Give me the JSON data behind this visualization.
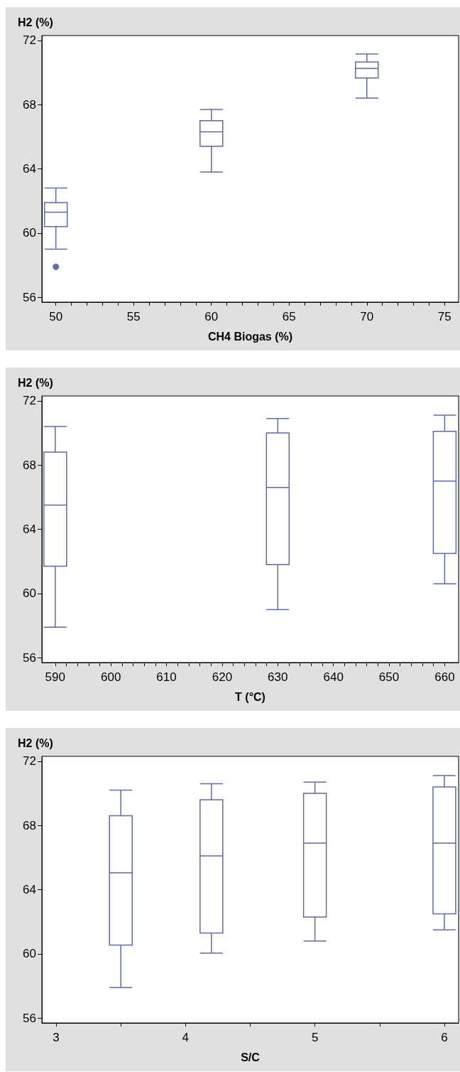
{
  "chart_data": [
    {
      "type": "box",
      "xlabel": "CH4 Biogas (%)",
      "ylabel": "H2 (%)",
      "x": [
        50,
        60,
        70
      ],
      "color": "#5b6bad",
      "grid": false,
      "ylim": [
        55.7,
        72.3
      ],
      "yticks": [
        56,
        60,
        64,
        68,
        72
      ],
      "xlim": [
        49.1,
        75.9
      ],
      "xticks": [
        50,
        {
          "value": 51,
          "label": null
        },
        {
          "value": 52,
          "label": null
        },
        {
          "value": 53,
          "label": null
        },
        {
          "value": 54,
          "label": null
        },
        55,
        {
          "value": 56,
          "label": null
        },
        {
          "value": 57,
          "label": null
        },
        {
          "value": 58,
          "label": null
        },
        {
          "value": 59,
          "label": null
        },
        60,
        {
          "value": 61,
          "label": null
        },
        {
          "value": 62,
          "label": null
        },
        {
          "value": 63,
          "label": null
        },
        {
          "value": 64,
          "label": null
        },
        65,
        {
          "value": 66,
          "label": null
        },
        {
          "value": 67,
          "label": null
        },
        {
          "value": 68,
          "label": null
        },
        {
          "value": 69,
          "label": null
        },
        70,
        {
          "value": 71,
          "label": null
        },
        {
          "value": 72,
          "label": null
        },
        {
          "value": 73,
          "label": null
        },
        {
          "value": 74,
          "label": null
        },
        75
      ],
      "boxes": [
        {
          "low": 59.0,
          "q1": 60.4,
          "median": 61.3,
          "q3": 61.9,
          "high": 62.8,
          "outliers": [
            57.9
          ]
        },
        {
          "low": 63.8,
          "q1": 65.4,
          "median": 66.3,
          "q3": 67.0,
          "high": 67.7
        },
        {
          "low": 68.4,
          "q1": 69.65,
          "median": 70.25,
          "q3": 70.65,
          "high": 71.15
        }
      ]
    },
    {
      "type": "box",
      "xlabel": "T (°C)",
      "ylabel": "H2 (%)",
      "x": [
        590,
        630,
        660
      ],
      "color": "#5b6bad",
      "grid": false,
      "ylim": [
        55.7,
        72.3
      ],
      "yticks": [
        56,
        60,
        64,
        68,
        72
      ],
      "xlim": [
        587.6,
        662.5
      ],
      "xticks": [
        590,
        {
          "value": 592,
          "label": null
        },
        {
          "value": 594,
          "label": null
        },
        {
          "value": 596,
          "label": null
        },
        {
          "value": 598,
          "label": null
        },
        600,
        {
          "value": 602,
          "label": null
        },
        {
          "value": 604,
          "label": null
        },
        {
          "value": 606,
          "label": null
        },
        {
          "value": 608,
          "label": null
        },
        610,
        {
          "value": 612,
          "label": null
        },
        {
          "value": 614,
          "label": null
        },
        {
          "value": 616,
          "label": null
        },
        {
          "value": 618,
          "label": null
        },
        620,
        {
          "value": 622,
          "label": null
        },
        {
          "value": 624,
          "label": null
        },
        {
          "value": 626,
          "label": null
        },
        {
          "value": 628,
          "label": null
        },
        630,
        {
          "value": 632,
          "label": null
        },
        {
          "value": 634,
          "label": null
        },
        {
          "value": 636,
          "label": null
        },
        {
          "value": 638,
          "label": null
        },
        640,
        {
          "value": 642,
          "label": null
        },
        {
          "value": 644,
          "label": null
        },
        {
          "value": 646,
          "label": null
        },
        {
          "value": 648,
          "label": null
        },
        650,
        {
          "value": 652,
          "label": null
        },
        {
          "value": 654,
          "label": null
        },
        {
          "value": 656,
          "label": null
        },
        {
          "value": 658,
          "label": null
        },
        660
      ],
      "boxes": [
        {
          "low": 57.9,
          "q1": 61.7,
          "median": 65.5,
          "q3": 68.8,
          "high": 70.4
        },
        {
          "low": 59.0,
          "q1": 61.8,
          "median": 66.6,
          "q3": 70.0,
          "high": 70.9
        },
        {
          "low": 60.6,
          "q1": 62.5,
          "median": 67.0,
          "q3": 70.1,
          "high": 71.1
        }
      ]
    },
    {
      "type": "box",
      "xlabel": "S/C",
      "ylabel": "H2 (%)",
      "x": [
        3.5,
        4.2,
        5,
        6
      ],
      "color": "#5b6bad",
      "grid": false,
      "ylim": [
        55.7,
        72.3
      ],
      "yticks": [
        56,
        60,
        64,
        68,
        72
      ],
      "xlim": [
        2.89,
        6.11
      ],
      "xticks": [
        3,
        {
          "value": 3.5,
          "label": null
        },
        4,
        {
          "value": 4.5,
          "label": null
        },
        5,
        {
          "value": 5.5,
          "label": null
        },
        6
      ],
      "boxes": [
        {
          "low": 57.9,
          "q1": 60.55,
          "median": 65.05,
          "q3": 68.6,
          "high": 70.2
        },
        {
          "low": 60.05,
          "q1": 61.3,
          "median": 66.1,
          "q3": 69.6,
          "high": 70.6
        },
        {
          "low": 60.8,
          "q1": 62.3,
          "median": 66.9,
          "q3": 70.0,
          "high": 70.7
        },
        {
          "low": 61.5,
          "q1": 62.5,
          "median": 66.9,
          "q3": 70.4,
          "high": 71.1
        }
      ]
    }
  ]
}
